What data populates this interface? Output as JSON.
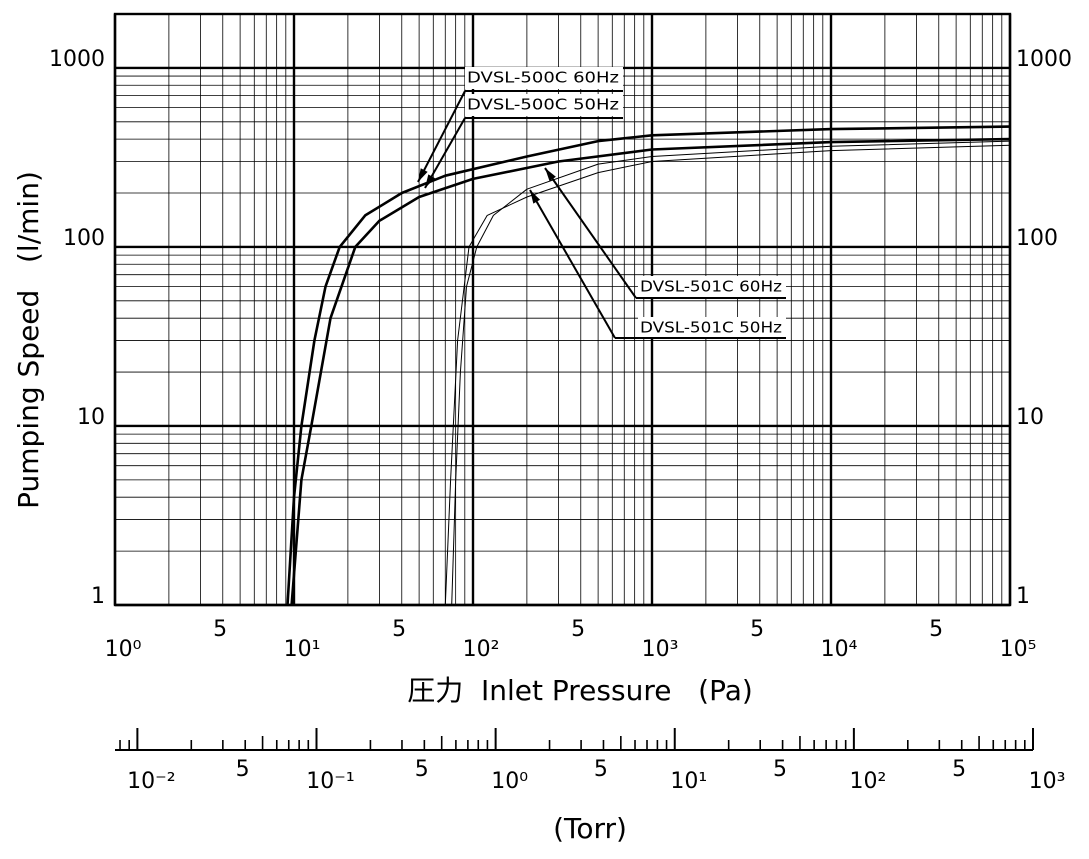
{
  "chart_data": {
    "type": "line",
    "ylabel": "Pumping Speed   (l/min)",
    "xlabel": "圧力  Inlet Pressure   (Pa)",
    "x2label": "(Torr)",
    "xscale": "log",
    "yscale": "log",
    "grid": true,
    "xlim": [
      1,
      100000
    ],
    "ylim": [
      1,
      2000
    ],
    "xticks": [
      {
        "value": 1,
        "label": "10⁰"
      },
      5,
      {
        "value": 10,
        "label": "10¹"
      },
      {
        "value": 50,
        "label": "5"
      },
      {
        "value": 100,
        "label": "10²"
      },
      {
        "value": 500,
        "label": "5"
      },
      {
        "value": 1000,
        "label": "10³"
      },
      {
        "value": 5000,
        "label": "5"
      },
      {
        "value": 10000,
        "label": "10⁴"
      },
      {
        "value": 50000,
        "label": "5"
      },
      {
        "value": 100000,
        "label": "10⁵"
      }
    ],
    "xminor": [
      2,
      3,
      4,
      6,
      7,
      8,
      9,
      20,
      30,
      40,
      60,
      70,
      80,
      90,
      200,
      300,
      400,
      600,
      700,
      800,
      900,
      2000,
      3000,
      4000,
      6000,
      7000,
      8000,
      9000,
      20000,
      30000,
      40000,
      60000,
      70000,
      80000,
      90000
    ],
    "yticks": [
      1,
      10,
      100,
      1000
    ],
    "yminor": [
      2,
      3,
      4,
      5,
      6,
      7,
      8,
      9,
      20,
      30,
      40,
      50,
      60,
      70,
      80,
      90,
      200,
      300,
      400,
      500,
      600,
      700,
      800,
      900
    ],
    "x2lim": [
      0.0075,
      1000
    ],
    "x2ticks": [
      {
        "value": 0.01,
        "label": "10⁻²"
      },
      {
        "value": 0.05,
        "label": "5"
      },
      {
        "value": 0.1,
        "label": "10⁻¹"
      },
      {
        "value": 0.5,
        "label": "5"
      },
      {
        "value": 1,
        "label": "10⁰"
      },
      5,
      {
        "value": 10,
        "label": "10¹"
      },
      {
        "value": 50,
        "label": "5"
      },
      {
        "value": 100,
        "label": "10²"
      },
      {
        "value": 500,
        "label": "5"
      },
      {
        "value": 1000,
        "label": "10³"
      }
    ],
    "x2minor": [
      0.008,
      0.009,
      0.02,
      0.03,
      0.04,
      0.06,
      0.07,
      0.08,
      0.09,
      0.2,
      0.3,
      0.4,
      0.6,
      0.7,
      0.8,
      0.9,
      2,
      3,
      4,
      6,
      7,
      8,
      9,
      20,
      30,
      40,
      60,
      70,
      80,
      90,
      200,
      300,
      400,
      600,
      700,
      800,
      900
    ],
    "series": [
      {
        "name": "DVSL-500C 60Hz",
        "color": "#000000",
        "width": 2.6,
        "x": [
          9.2,
          10,
          11,
          13,
          15,
          18,
          25,
          40,
          70,
          200,
          500,
          1000,
          10000,
          100000
        ],
        "values": [
          1,
          4,
          10,
          30,
          60,
          100,
          150,
          200,
          250,
          320,
          390,
          420,
          455,
          470
        ]
      },
      {
        "name": "DVSL-500C 50Hz",
        "color": "#000000",
        "width": 2.6,
        "x": [
          9.7,
          11,
          12.5,
          16,
          22,
          30,
          50,
          100,
          300,
          1000,
          10000,
          100000
        ],
        "values": [
          1,
          5,
          10,
          40,
          100,
          140,
          190,
          240,
          300,
          350,
          385,
          400
        ]
      },
      {
        "name": "DVSL-501C 60Hz",
        "color": "#000000",
        "width": 1,
        "x": [
          76,
          80,
          85,
          92,
          105,
          130,
          200,
          500,
          1000,
          10000,
          100000
        ],
        "values": [
          1,
          5,
          20,
          60,
          100,
          150,
          210,
          290,
          320,
          365,
          390
        ]
      },
      {
        "name": "DVSL-501C 50Hz",
        "color": "#000000",
        "width": 1,
        "x": [
          70,
          75,
          82,
          95,
          120,
          200,
          500,
          1000,
          10000,
          100000
        ],
        "values": [
          1,
          5,
          30,
          100,
          150,
          190,
          260,
          300,
          345,
          370
        ]
      }
    ]
  }
}
